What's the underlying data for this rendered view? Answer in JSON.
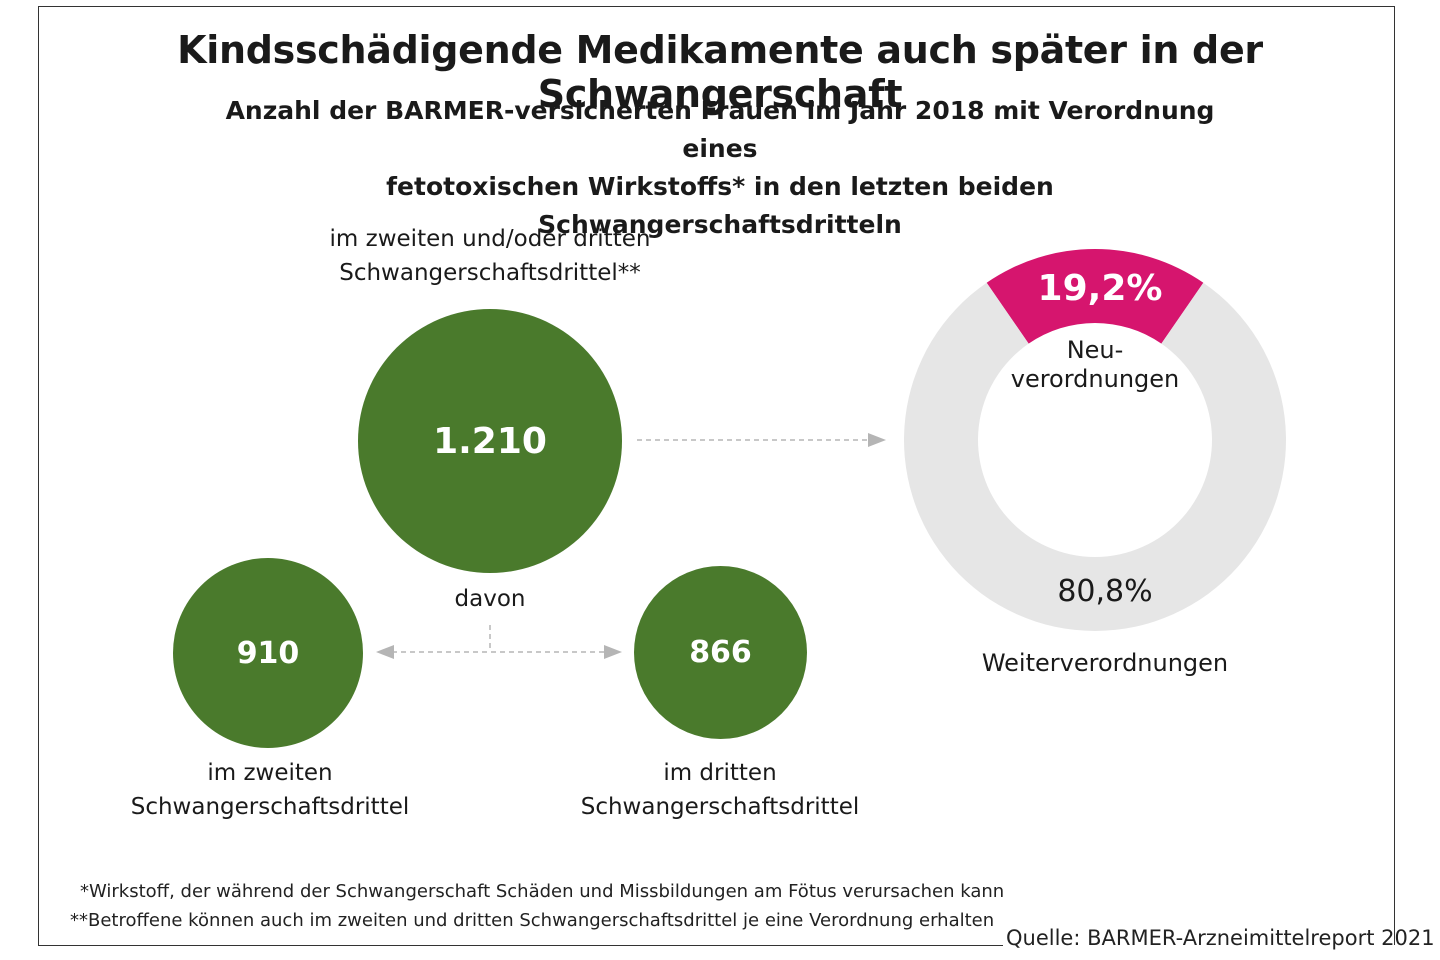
{
  "title": "Kindsschädigende Medikamente auch später in der Schwangerschaft",
  "subtitle_line1": "Anzahl der BARMER-versicherten Frauen im Jahr 2018 mit Verordnung eines",
  "subtitle_line2": "fetotoxischen Wirkstoffs* in den letzten beiden Schwangerschaftsdritteln",
  "main_label_line1": "im zweiten und/oder dritten",
  "main_label_line2": "Schwangerschaftsdrittel**",
  "davon": "davon",
  "left_label_line1": "im zweiten",
  "left_label_line2": "Schwangerschaftsdrittel",
  "right_label_line1": "im dritten",
  "right_label_line2": "Schwangerschaftsdrittel",
  "footnote1": "*Wirkstoff, der während der Schwangerschaft Schäden und Missbildungen am Fötus verursachen kann",
  "footnote2": "**Betroffene können auch im zweiten und dritten Schwangerschaftsdrittel je eine Verordnung erhalten",
  "source": "Quelle: BARMER-Arzneimittelreport 2021",
  "colors": {
    "green": "#4a7a2c",
    "magenta": "#d6156e",
    "ring_grey": "#e6e6e6"
  },
  "chart_data": [
    {
      "type": "bubble",
      "title": "",
      "categories": [
        "im zweiten und/oder dritten Schwangerschaftsdrittel**",
        "im zweiten Schwangerschaftsdrittel",
        "im dritten Schwangerschaftsdrittel"
      ],
      "values": [
        1210,
        910,
        866
      ],
      "value_labels": [
        "1.210",
        "910",
        "866"
      ]
    },
    {
      "type": "pie",
      "donut": true,
      "categories": [
        "Neu-verordnungen",
        "Weiterverordnungen"
      ],
      "labels": [
        "Neu-",
        "verordnungen",
        "Weiterverordnungen"
      ],
      "values": [
        19.2,
        80.8
      ],
      "value_labels": [
        "19,2%",
        "80,8%"
      ],
      "colors": [
        "#d6156e",
        "#e6e6e6"
      ]
    }
  ]
}
